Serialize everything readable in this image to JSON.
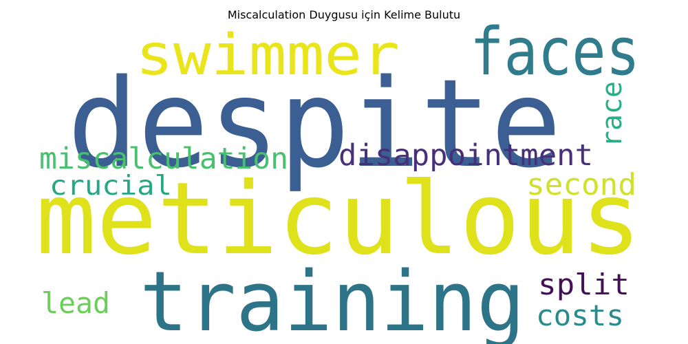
{
  "title": "Miscalculation Duygusu için Kelime Bulutu",
  "words": [
    {
      "text": "despite",
      "color": "#3b5e93"
    },
    {
      "text": "meticulous",
      "color": "#dfe11b"
    },
    {
      "text": "training",
      "color": "#2e7489"
    },
    {
      "text": "swimmer",
      "color": "#eae51a"
    },
    {
      "text": "faces",
      "color": "#2f7c8d"
    },
    {
      "text": "disappointment",
      "color": "#472f7a"
    },
    {
      "text": "miscalculation",
      "color": "#48c16e"
    },
    {
      "text": "crucial",
      "color": "#24a884"
    },
    {
      "text": "second",
      "color": "#cfe12b"
    },
    {
      "text": "race",
      "color": "#29af7f"
    },
    {
      "text": "split",
      "color": "#440f56"
    },
    {
      "text": "costs",
      "color": "#2b8a8c"
    },
    {
      "text": "lead",
      "color": "#6ccd5a"
    }
  ]
}
